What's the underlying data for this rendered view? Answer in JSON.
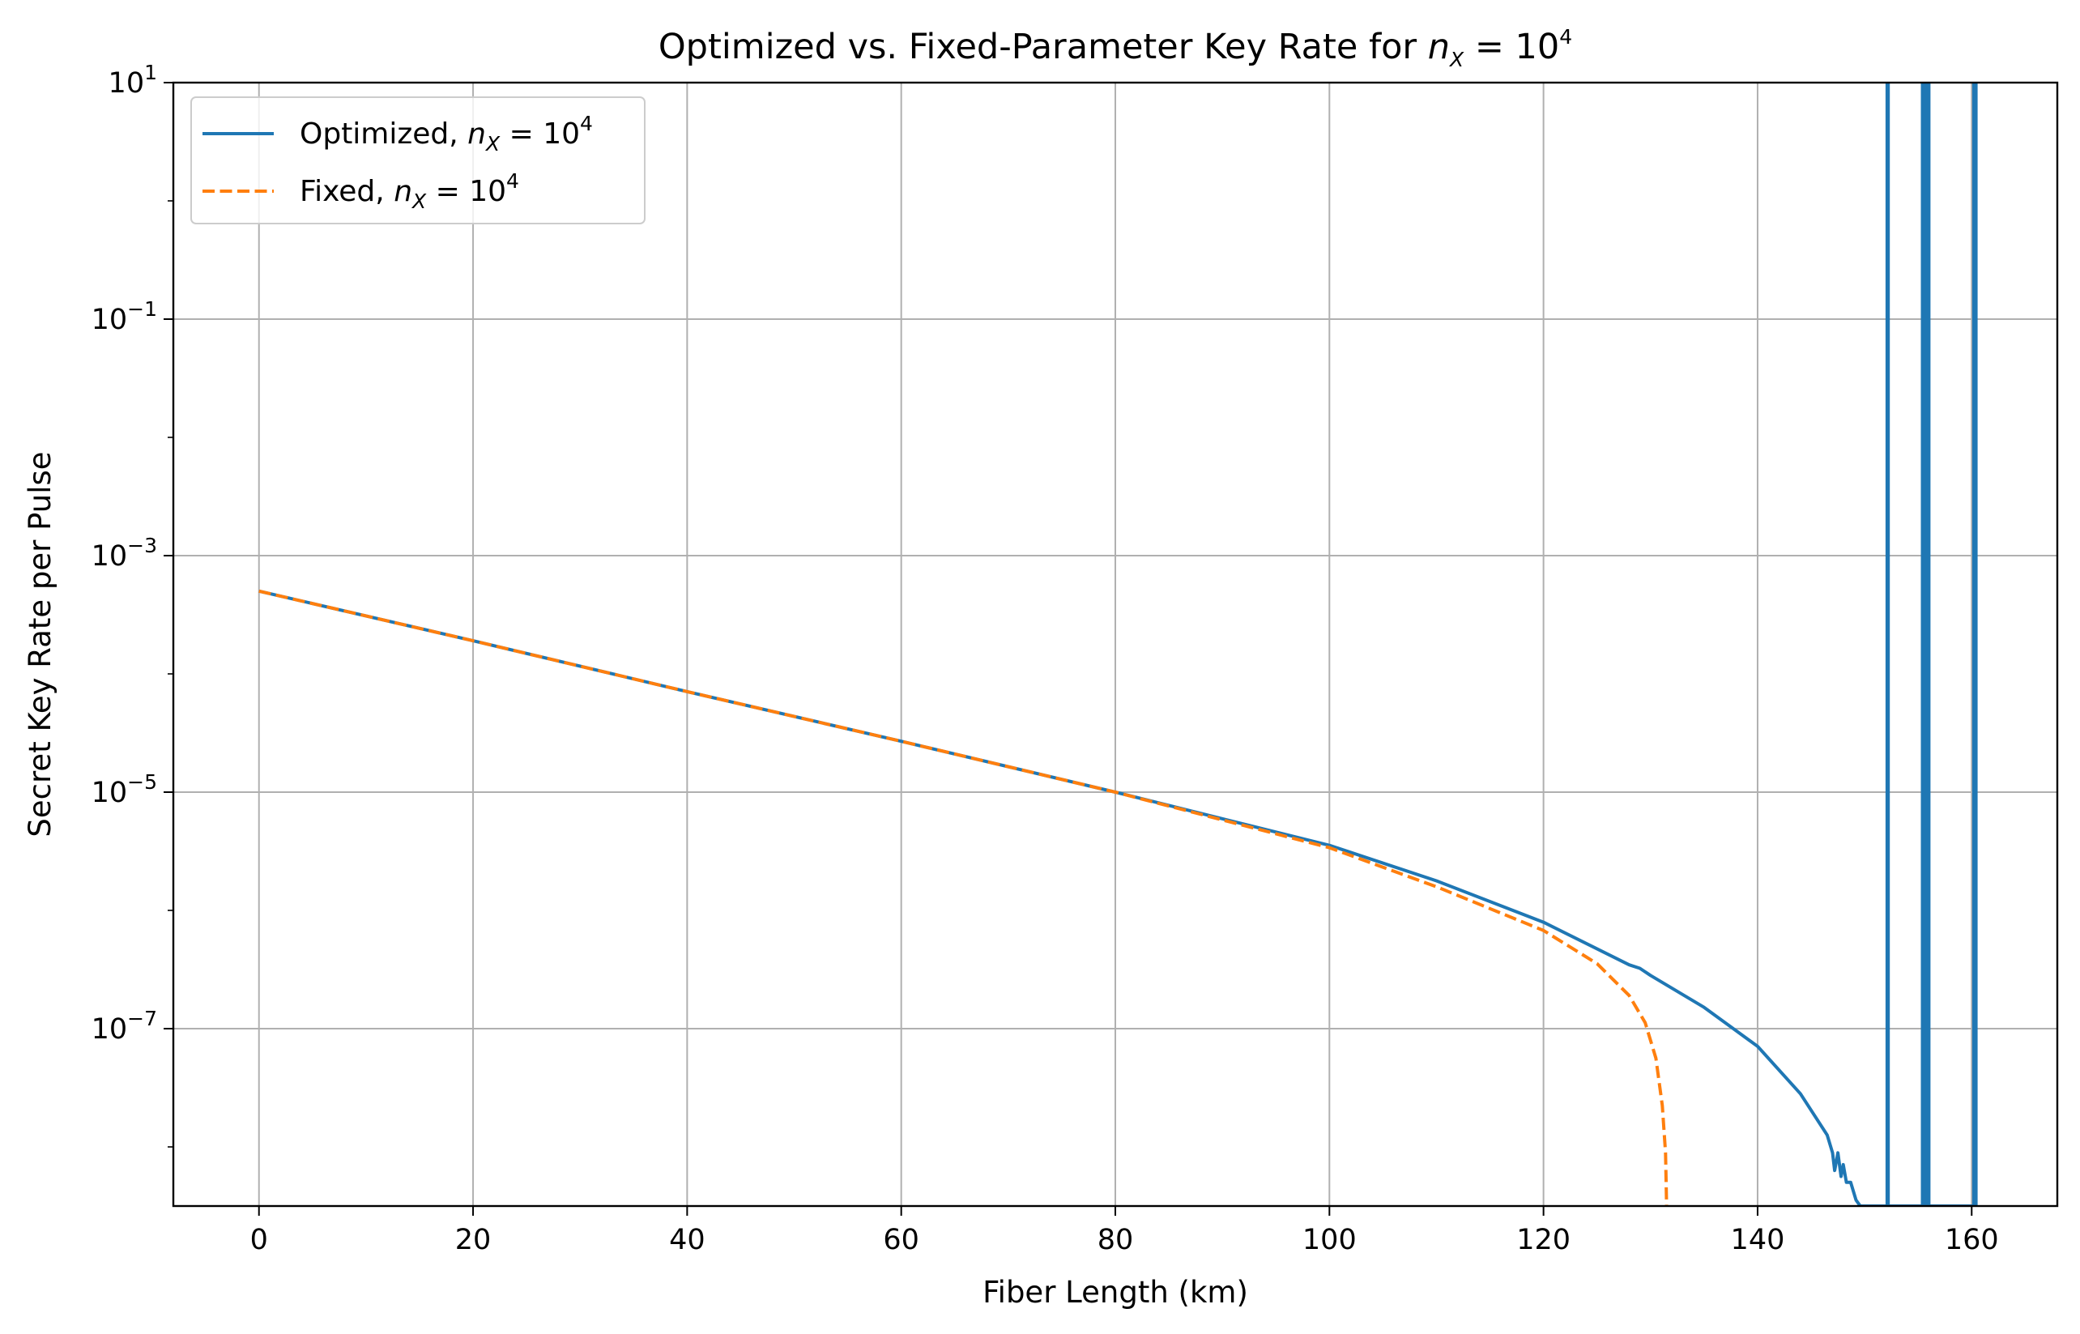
{
  "chart_data": {
    "type": "line",
    "title": {
      "prefix": "Optimized vs. Fixed-Parameter Key Rate for ",
      "math_n": "n",
      "math_sub": "X",
      "math_eq": " = 10",
      "math_exp": "4"
    },
    "xlabel": "Fiber Length (km)",
    "ylabel": "Secret Key Rate per Pulse",
    "xlim": [
      -8,
      168
    ],
    "ylim_log10": [
      -8.5,
      1
    ],
    "y_scale": "log",
    "grid": true,
    "legend_position": "top-left",
    "x_ticks": [
      0,
      20,
      40,
      60,
      80,
      100,
      120,
      140,
      160
    ],
    "x_tick_labels": [
      "0",
      "20",
      "40",
      "60",
      "80",
      "100",
      "120",
      "140",
      "160"
    ],
    "y_ticks_log10": [
      -7,
      -5,
      -3,
      -1,
      1
    ],
    "y_tick_labels": [
      {
        "base": "10",
        "exp": "−7"
      },
      {
        "base": "10",
        "exp": "−5"
      },
      {
        "base": "10",
        "exp": "−3"
      },
      {
        "base": "10",
        "exp": "−1"
      },
      {
        "base": "10",
        "exp": "1"
      }
    ],
    "series": [
      {
        "name": "Optimized",
        "legend": {
          "prefix": "Optimized, ",
          "n": "n",
          "sub": "X",
          "eq": " = 10",
          "exp": "4"
        },
        "color": "#1f77b4",
        "dash": "solid",
        "x": [
          0,
          20,
          40,
          60,
          80,
          100,
          110,
          120,
          128,
          129,
          130,
          135,
          140,
          144,
          146.5,
          147,
          147.2,
          147.5,
          147.8,
          148.0,
          148.3,
          148.7,
          149.2,
          149.6,
          152.1,
          152.1,
          152.2,
          152.2,
          155.4,
          155.4,
          155.6,
          155.6,
          155.8,
          155.8,
          156.0,
          156.0,
          160.2,
          160.2,
          160.4,
          160.4
        ],
        "y_log10": [
          -3.3,
          -3.72,
          -4.15,
          -4.57,
          -5.0,
          -5.45,
          -5.75,
          -6.1,
          -6.46,
          -6.49,
          -6.55,
          -6.82,
          -7.15,
          -7.55,
          -7.9,
          -8.05,
          -8.2,
          -8.05,
          -8.25,
          -8.15,
          -8.3,
          -8.3,
          -8.45,
          -8.5,
          -8.5,
          1.0,
          1.0,
          -8.5,
          -8.5,
          1.0,
          1.0,
          -8.5,
          -8.5,
          1.0,
          1.0,
          -8.5,
          -8.5,
          1.0,
          1.0,
          -8.5
        ]
      },
      {
        "name": "Fixed",
        "legend": {
          "prefix": "Fixed, ",
          "n": "n",
          "sub": "X",
          "eq": " = 10",
          "exp": "4"
        },
        "color": "#ff7f0e",
        "dash": "dashed",
        "x": [
          0,
          20,
          40,
          60,
          80,
          100,
          110,
          120,
          125,
          128,
          129.5,
          130.5,
          131.1,
          131.4,
          131.5
        ],
        "y_log10": [
          -3.3,
          -3.72,
          -4.15,
          -4.57,
          -5.0,
          -5.47,
          -5.8,
          -6.17,
          -6.45,
          -6.72,
          -6.95,
          -7.25,
          -7.65,
          -8.05,
          -8.5
        ]
      }
    ]
  }
}
